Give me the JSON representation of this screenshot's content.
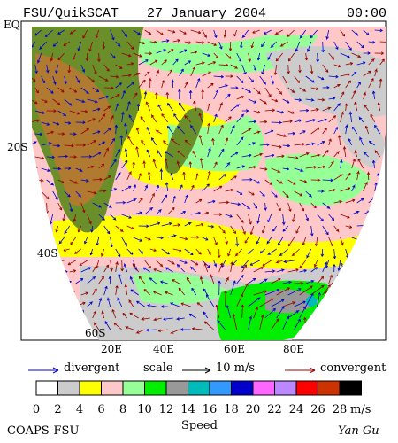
{
  "header": {
    "title": "FSU/QuikSCAT",
    "date": "27 January 2004",
    "time": "00:00"
  },
  "map": {
    "lat_labels": [
      "EQ",
      "20S",
      "40S",
      "60S"
    ],
    "lon_labels": [
      "20E",
      "40E",
      "60E",
      "80E"
    ]
  },
  "legend": {
    "divergent": "divergent",
    "scale": "scale",
    "scale_value": "10 m/s",
    "convergent": "convergent",
    "divergent_color": "#0000cc",
    "convergent_color": "#990000"
  },
  "colorbar": {
    "labels": [
      "0",
      "2",
      "4",
      "6",
      "8",
      "10",
      "12",
      "14",
      "16",
      "18",
      "20",
      "22",
      "24",
      "26",
      "28"
    ],
    "colors": [
      "#ffffff",
      "#cccccc",
      "#ffff00",
      "#ffc8c8",
      "#96ff96",
      "#00ee00",
      "#999999",
      "#00bbbb",
      "#3399ff",
      "#0000cc",
      "#ff66ff",
      "#bb88ff",
      "#ff0000",
      "#cc3300",
      "#000000"
    ],
    "unit": "m/s",
    "title": "Speed"
  },
  "footer": {
    "left": "COAPS-FSU",
    "right": "Yan Gu"
  }
}
